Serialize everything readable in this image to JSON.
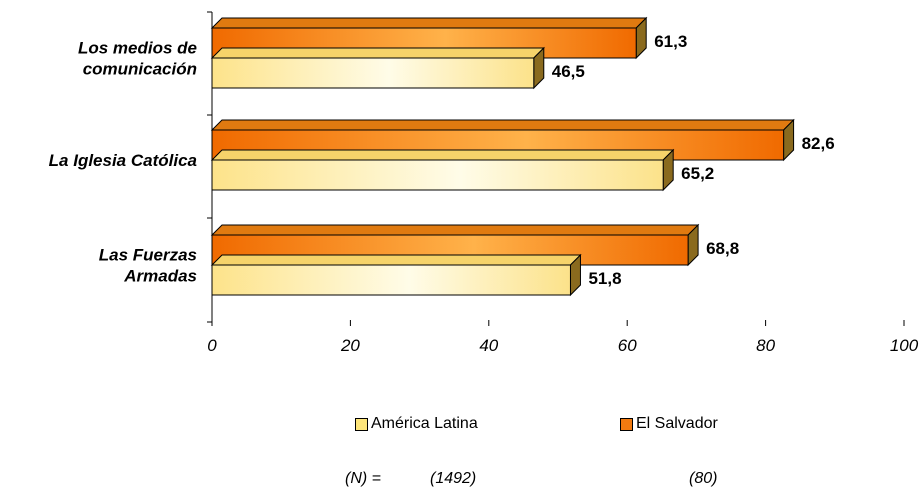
{
  "chart_data": {
    "type": "bar",
    "orientation": "horizontal",
    "categories": [
      [
        "Los medios de",
        "comunicación"
      ],
      [
        "La Iglesia Católica"
      ],
      [
        "Las Fuerzas",
        "Armadas"
      ]
    ],
    "series": [
      {
        "name": "El Salvador",
        "values": [
          61.3,
          82.6,
          68.8
        ],
        "labels": [
          "61,3",
          "82,6",
          "68,8"
        ],
        "color": "#f27a10"
      },
      {
        "name": "América Latina",
        "values": [
          46.5,
          65.2,
          51.8
        ],
        "labels": [
          "46,5",
          "65,2",
          "51,8"
        ],
        "color": "#fde57a"
      }
    ],
    "xlim": [
      0,
      100
    ],
    "xticks": [
      0,
      20,
      40,
      60,
      80,
      100
    ],
    "xtick_labels": [
      "0",
      "20",
      "40",
      "60",
      "80",
      "100"
    ],
    "grid": false,
    "legend_position": "bottom"
  },
  "legend": {
    "items": [
      {
        "label": "América Latina",
        "color": "#fde57a"
      },
      {
        "label": "El Salvador",
        "color": "#f27a10"
      }
    ]
  },
  "footer": {
    "n_label": "(N) =",
    "n_latin_america": "(1492)",
    "n_el_salvador": "(80)"
  }
}
